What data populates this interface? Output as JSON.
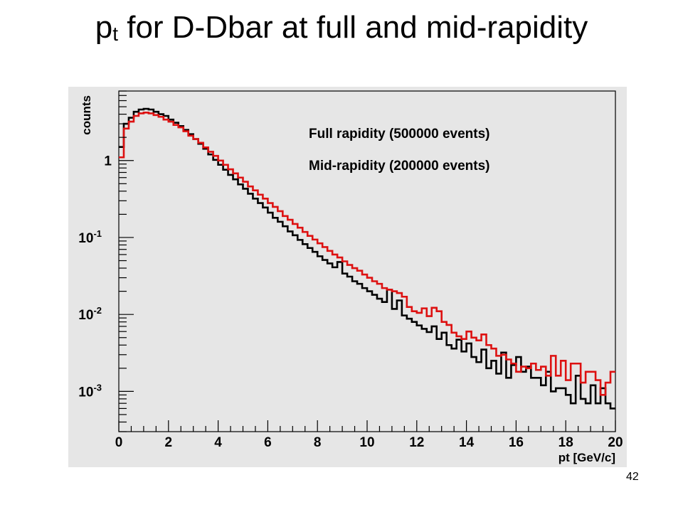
{
  "slide": {
    "title_main": "p",
    "title_sub": "t",
    "title_rest": " for D-Dbar at full and mid-rapidity",
    "page_number": "42"
  },
  "chart_data": {
    "type": "histogram",
    "xlabel": "pt [GeV/c]",
    "ylabel": "counts",
    "xlim": [
      0,
      20
    ],
    "ylim": [
      0.0003,
      8
    ],
    "yscale": "log",
    "grid": false,
    "legend_position": "top-right",
    "x_ticks": [
      "0",
      "2",
      "4",
      "6",
      "8",
      "10",
      "12",
      "14",
      "16",
      "18",
      "20"
    ],
    "y_ticks": [
      {
        "value": 1,
        "base": "1",
        "exp": ""
      },
      {
        "value": 0.1,
        "base": "10",
        "exp": "-1"
      },
      {
        "value": 0.01,
        "base": "10",
        "exp": "-2"
      },
      {
        "value": 0.001,
        "base": "10",
        "exp": "-3"
      }
    ],
    "bin_width": 0.2,
    "series": [
      {
        "name": "Full rapidity  (500000 events)",
        "color": "#000000",
        "values": [
          1.5,
          3.0,
          3.6,
          4.3,
          4.6,
          4.7,
          4.6,
          4.3,
          4.0,
          3.8,
          3.4,
          3.1,
          2.8,
          2.5,
          2.2,
          1.9,
          1.65,
          1.42,
          1.2,
          1.02,
          0.88,
          0.76,
          0.65,
          0.57,
          0.49,
          0.43,
          0.37,
          0.32,
          0.28,
          0.245,
          0.21,
          0.18,
          0.16,
          0.14,
          0.12,
          0.107,
          0.093,
          0.082,
          0.073,
          0.065,
          0.057,
          0.051,
          0.046,
          0.041,
          0.048,
          0.034,
          0.031,
          0.027,
          0.025,
          0.022,
          0.02,
          0.018,
          0.016,
          0.0145,
          0.021,
          0.0118,
          0.0152,
          0.0097,
          0.0088,
          0.008,
          0.0072,
          0.0065,
          0.0059,
          0.007,
          0.0048,
          0.0058,
          0.004,
          0.0036,
          0.0047,
          0.0033,
          0.0042,
          0.0028,
          0.0024,
          0.0035,
          0.002,
          0.0025,
          0.0017,
          0.0032,
          0.0015,
          0.0022,
          0.0028,
          0.0018,
          0.0021,
          0.0015,
          0.0015,
          0.0012,
          0.0018,
          0.001,
          0.0011,
          0.0011,
          0.0009,
          0.0007,
          0.0016,
          0.0008,
          0.0007,
          0.0012,
          0.0007,
          0.0011,
          0.0007,
          0.0006
        ]
      },
      {
        "name": "Mid-rapidity  (200000 events)",
        "color": "#dd1111",
        "values": [
          1.1,
          2.6,
          3.2,
          3.8,
          4.1,
          4.2,
          4.1,
          3.9,
          3.7,
          3.4,
          3.2,
          2.9,
          2.7,
          2.4,
          2.1,
          1.9,
          1.7,
          1.48,
          1.3,
          1.15,
          1.0,
          0.88,
          0.77,
          0.68,
          0.6,
          0.53,
          0.46,
          0.41,
          0.36,
          0.32,
          0.28,
          0.25,
          0.22,
          0.19,
          0.17,
          0.15,
          0.134,
          0.118,
          0.105,
          0.094,
          0.084,
          0.075,
          0.067,
          0.06,
          0.055,
          0.049,
          0.044,
          0.04,
          0.037,
          0.033,
          0.03,
          0.027,
          0.025,
          0.022,
          0.021,
          0.02,
          0.019,
          0.017,
          0.0125,
          0.011,
          0.0105,
          0.012,
          0.0095,
          0.0122,
          0.011,
          0.008,
          0.0073,
          0.0058,
          0.0052,
          0.0048,
          0.006,
          0.005,
          0.0046,
          0.0055,
          0.004,
          0.0036,
          0.0029,
          0.003,
          0.0026,
          0.0023,
          0.0018,
          0.0021,
          0.002,
          0.0023,
          0.0019,
          0.0021,
          0.0016,
          0.0029,
          0.0016,
          0.0025,
          0.0014,
          0.0023,
          0.0023,
          0.0013,
          0.0018,
          0.0018,
          0.0014,
          0.0009,
          0.0013,
          0.0018
        ]
      }
    ]
  }
}
